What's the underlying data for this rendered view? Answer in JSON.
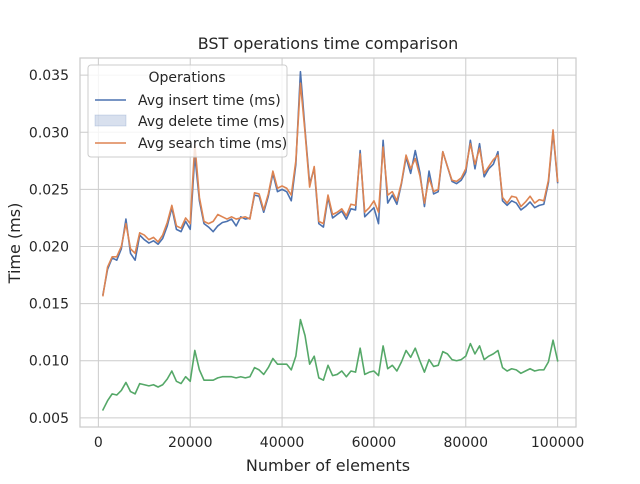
{
  "chart_data": {
    "type": "line",
    "title": "BST operations time comparison",
    "xlabel": "Number of elements",
    "ylabel": "Time (ms)",
    "xlim": [
      -4000,
      104000
    ],
    "ylim": [
      0.0042,
      0.0365
    ],
    "xticks": [
      0,
      20000,
      40000,
      60000,
      80000,
      100000
    ],
    "yticks": [
      0.005,
      0.01,
      0.015,
      0.02,
      0.025,
      0.03,
      0.035
    ],
    "grid": true,
    "legend": {
      "title": "Operations",
      "placement": "top-left",
      "entries": [
        {
          "label": "Avg insert time (ms)",
          "color": "#4c72b0",
          "marker": "line"
        },
        {
          "label": "Avg delete time (ms)",
          "color": "#4c72b0",
          "marker": "patch"
        },
        {
          "label": "Avg search time (ms)",
          "color": "#dd8452",
          "marker": "line"
        }
      ]
    },
    "x": [
      1000,
      2000,
      3000,
      4000,
      5000,
      6000,
      7000,
      8000,
      9000,
      10000,
      11000,
      12000,
      13000,
      14000,
      15000,
      16000,
      17000,
      18000,
      19000,
      20000,
      21000,
      22000,
      23000,
      24000,
      25000,
      26000,
      27000,
      28000,
      29000,
      30000,
      31000,
      32000,
      33000,
      34000,
      35000,
      36000,
      37000,
      38000,
      39000,
      40000,
      41000,
      42000,
      43000,
      44000,
      45000,
      46000,
      47000,
      48000,
      49000,
      50000,
      51000,
      52000,
      53000,
      54000,
      55000,
      56000,
      57000,
      58000,
      59000,
      60000,
      61000,
      62000,
      63000,
      64000,
      65000,
      66000,
      67000,
      68000,
      69000,
      70000,
      71000,
      72000,
      73000,
      74000,
      75000,
      76000,
      77000,
      78000,
      79000,
      80000,
      81000,
      82000,
      83000,
      84000,
      85000,
      86000,
      87000,
      88000,
      89000,
      90000,
      91000,
      92000,
      93000,
      94000,
      95000,
      96000,
      97000,
      98000,
      99000,
      100000
    ],
    "series": [
      {
        "name": "Avg insert time (ms)",
        "color": "#4c72b0",
        "values": [
          0.0158,
          0.018,
          0.019,
          0.0188,
          0.0198,
          0.0224,
          0.0194,
          0.0188,
          0.021,
          0.0206,
          0.0203,
          0.0205,
          0.0202,
          0.0207,
          0.0218,
          0.0234,
          0.0215,
          0.0213,
          0.0222,
          0.0215,
          0.028,
          0.024,
          0.022,
          0.0217,
          0.0213,
          0.0218,
          0.0221,
          0.0222,
          0.0224,
          0.0218,
          0.0226,
          0.0224,
          0.0225,
          0.0245,
          0.0244,
          0.023,
          0.0244,
          0.0264,
          0.0248,
          0.025,
          0.0248,
          0.024,
          0.0272,
          0.0353,
          0.0302,
          0.0255,
          0.0268,
          0.022,
          0.0217,
          0.0243,
          0.0225,
          0.0228,
          0.0231,
          0.0224,
          0.0233,
          0.0232,
          0.0284,
          0.0226,
          0.023,
          0.0234,
          0.022,
          0.0293,
          0.0238,
          0.0245,
          0.0237,
          0.0255,
          0.0278,
          0.0264,
          0.0284,
          0.0265,
          0.0235,
          0.0266,
          0.0246,
          0.0248,
          0.0283,
          0.027,
          0.0257,
          0.0255,
          0.0258,
          0.0265,
          0.0293,
          0.0268,
          0.029,
          0.0261,
          0.0268,
          0.0272,
          0.0283,
          0.024,
          0.0236,
          0.024,
          0.0238,
          0.0232,
          0.0235,
          0.0239,
          0.0234,
          0.0236,
          0.0237,
          0.0256,
          0.03,
          0.0256
        ]
      },
      {
        "name": "Avg search time (ms)",
        "color": "#dd8452",
        "values": [
          0.0157,
          0.0182,
          0.0191,
          0.0191,
          0.02,
          0.022,
          0.0198,
          0.0194,
          0.0212,
          0.021,
          0.0206,
          0.0208,
          0.0204,
          0.021,
          0.0221,
          0.0236,
          0.0218,
          0.0216,
          0.0225,
          0.022,
          0.029,
          0.0243,
          0.0222,
          0.022,
          0.0222,
          0.0228,
          0.0226,
          0.0224,
          0.0226,
          0.0224,
          0.0225,
          0.0226,
          0.0224,
          0.0247,
          0.0246,
          0.0232,
          0.0246,
          0.0266,
          0.0251,
          0.0253,
          0.0251,
          0.0245,
          0.0275,
          0.0343,
          0.03,
          0.0252,
          0.027,
          0.0222,
          0.022,
          0.0245,
          0.0228,
          0.023,
          0.0233,
          0.0227,
          0.0237,
          0.0236,
          0.0281,
          0.023,
          0.0234,
          0.024,
          0.023,
          0.0287,
          0.0245,
          0.0248,
          0.024,
          0.0256,
          0.028,
          0.0268,
          0.0277,
          0.0262,
          0.0238,
          0.026,
          0.0248,
          0.025,
          0.0283,
          0.027,
          0.0258,
          0.0257,
          0.026,
          0.0268,
          0.029,
          0.0272,
          0.0286,
          0.0264,
          0.027,
          0.0276,
          0.028,
          0.0243,
          0.0238,
          0.0244,
          0.0243,
          0.0235,
          0.0239,
          0.0244,
          0.0238,
          0.0241,
          0.024,
          0.0258,
          0.0302,
          0.0257
        ]
      },
      {
        "name": "",
        "color": "#55a868",
        "values": [
          0.0057,
          0.0065,
          0.0071,
          0.007,
          0.0074,
          0.0081,
          0.0073,
          0.0071,
          0.008,
          0.0079,
          0.0078,
          0.0079,
          0.0077,
          0.0079,
          0.0084,
          0.0091,
          0.0082,
          0.008,
          0.0086,
          0.0082,
          0.0109,
          0.0092,
          0.0083,
          0.0083,
          0.0083,
          0.0085,
          0.0086,
          0.0086,
          0.0086,
          0.0085,
          0.0086,
          0.0085,
          0.0086,
          0.0094,
          0.0092,
          0.0088,
          0.0094,
          0.0102,
          0.0097,
          0.0097,
          0.0097,
          0.0092,
          0.0104,
          0.0136,
          0.0122,
          0.0097,
          0.0104,
          0.0085,
          0.0083,
          0.0096,
          0.0087,
          0.0088,
          0.0091,
          0.0086,
          0.0091,
          0.009,
          0.0111,
          0.0088,
          0.009,
          0.0091,
          0.0087,
          0.0113,
          0.0093,
          0.0096,
          0.0091,
          0.0099,
          0.0109,
          0.0103,
          0.0111,
          0.01,
          0.009,
          0.0101,
          0.0095,
          0.0096,
          0.0108,
          0.0106,
          0.0101,
          0.01,
          0.0101,
          0.0104,
          0.0115,
          0.0106,
          0.0113,
          0.0101,
          0.0104,
          0.0106,
          0.0109,
          0.0094,
          0.0091,
          0.0093,
          0.0092,
          0.0089,
          0.0091,
          0.0093,
          0.0091,
          0.0092,
          0.0092,
          0.0099,
          0.0118,
          0.01
        ]
      }
    ]
  }
}
